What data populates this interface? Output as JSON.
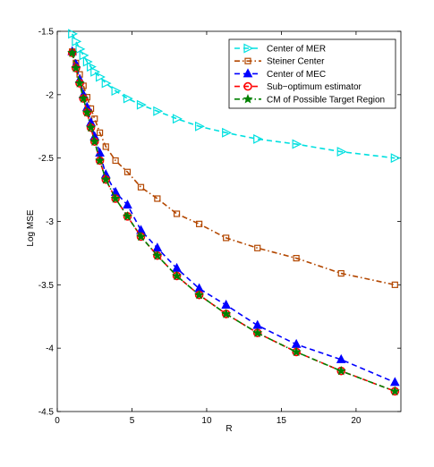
{
  "chart_data": {
    "type": "line",
    "title": "",
    "xlabel": "R",
    "ylabel": "Log MSE",
    "xlim": [
      0,
      23
    ],
    "ylim": [
      -4.5,
      -1.5
    ],
    "xticks": [
      0,
      5,
      10,
      15,
      20
    ],
    "yticks": [
      -4.5,
      -4,
      -3.5,
      -3,
      -2.5,
      -2,
      -1.5
    ],
    "xtick_labels": [
      "0",
      "5",
      "10",
      "15",
      "20"
    ],
    "ytick_labels": [
      "-4.5",
      "-4",
      "-3.5",
      "-3",
      "-2.5",
      "-2",
      "-1.5"
    ],
    "grid": false,
    "legend_position": "top-right",
    "series": [
      {
        "name": "Center of MER",
        "color": "#00e0e0",
        "line_style": "dashed",
        "marker": "triangle-right",
        "x": [
          1.0,
          1.25,
          1.5,
          1.75,
          2.0,
          2.25,
          2.5,
          2.85,
          3.25,
          3.9,
          4.7,
          5.6,
          6.7,
          8.0,
          9.5,
          11.3,
          13.4,
          16.0,
          19.0,
          22.6
        ],
        "y": [
          -1.52,
          -1.58,
          -1.64,
          -1.69,
          -1.74,
          -1.78,
          -1.82,
          -1.86,
          -1.91,
          -1.97,
          -2.03,
          -2.08,
          -2.13,
          -2.19,
          -2.25,
          -2.3,
          -2.35,
          -2.39,
          -2.45,
          -2.5
        ]
      },
      {
        "name": "Steiner Center",
        "color": "#b34700",
        "line_style": "dash-dot",
        "marker": "square",
        "x": [
          1.0,
          1.25,
          1.5,
          1.75,
          2.0,
          2.25,
          2.5,
          2.85,
          3.25,
          3.9,
          4.7,
          5.6,
          6.7,
          8.0,
          9.5,
          11.3,
          13.4,
          16.0,
          19.0,
          22.6
        ],
        "y": [
          -1.66,
          -1.75,
          -1.84,
          -1.93,
          -2.02,
          -2.11,
          -2.19,
          -2.3,
          -2.41,
          -2.52,
          -2.61,
          -2.73,
          -2.82,
          -2.94,
          -3.02,
          -3.13,
          -3.21,
          -3.29,
          -3.41,
          -3.5
        ]
      },
      {
        "name": "Center of MEC",
        "color": "#0000ff",
        "line_style": "dashed",
        "marker": "triangle-up",
        "x": [
          1.0,
          1.25,
          1.5,
          1.75,
          2.0,
          2.25,
          2.5,
          2.85,
          3.25,
          3.9,
          4.7,
          5.6,
          6.7,
          8.0,
          9.5,
          11.3,
          13.4,
          16.0,
          19.0,
          22.6
        ],
        "y": [
          -1.66,
          -1.76,
          -1.88,
          -2.0,
          -2.1,
          -2.22,
          -2.33,
          -2.46,
          -2.63,
          -2.77,
          -2.87,
          -3.07,
          -3.21,
          -3.37,
          -3.53,
          -3.66,
          -3.82,
          -3.97,
          -4.09,
          -4.27
        ]
      },
      {
        "name": "Sub−optimum estimator",
        "color": "#ff0000",
        "line_style": "dashed",
        "marker": "circle",
        "x": [
          1.0,
          1.25,
          1.5,
          1.75,
          2.0,
          2.25,
          2.5,
          2.85,
          3.25,
          3.9,
          4.7,
          5.6,
          6.7,
          8.0,
          9.5,
          11.3,
          13.4,
          16.0,
          19.0,
          22.6
        ],
        "y": [
          -1.67,
          -1.79,
          -1.91,
          -2.03,
          -2.14,
          -2.26,
          -2.37,
          -2.52,
          -2.67,
          -2.82,
          -2.96,
          -3.12,
          -3.27,
          -3.43,
          -3.58,
          -3.73,
          -3.88,
          -4.03,
          -4.18,
          -4.34
        ]
      },
      {
        "name": "CM of Possible Target Region",
        "color": "#008000",
        "line_style": "dash-dot",
        "marker": "star",
        "x": [
          1.0,
          1.25,
          1.5,
          1.75,
          2.0,
          2.25,
          2.5,
          2.85,
          3.25,
          3.9,
          4.7,
          5.6,
          6.7,
          8.0,
          9.5,
          11.3,
          13.4,
          16.0,
          19.0,
          22.6
        ],
        "y": [
          -1.67,
          -1.79,
          -1.91,
          -2.03,
          -2.14,
          -2.26,
          -2.37,
          -2.52,
          -2.67,
          -2.82,
          -2.96,
          -3.12,
          -3.27,
          -3.43,
          -3.58,
          -3.73,
          -3.88,
          -4.03,
          -4.18,
          -4.34
        ]
      }
    ]
  }
}
